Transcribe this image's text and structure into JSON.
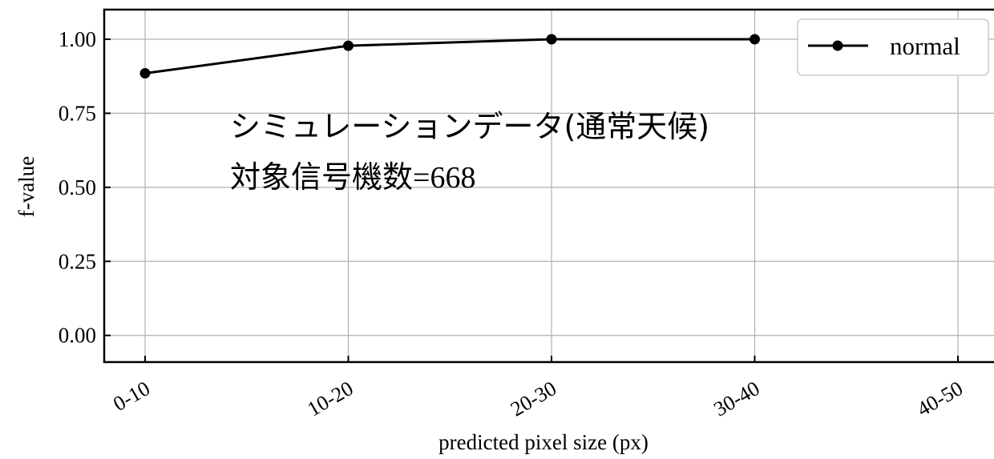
{
  "chart_data": {
    "type": "line",
    "categories": [
      "0-10",
      "10-20",
      "20-30",
      "30-40",
      "40-50"
    ],
    "series": [
      {
        "name": "normal",
        "values": [
          0.885,
          0.978,
          1.0,
          1.0,
          null
        ],
        "color": "#000000",
        "marker": "circle"
      }
    ],
    "xlabel": "predicted pixel size (px)",
    "ylabel": "f-value",
    "ylim": [
      -0.09,
      1.1
    ],
    "yticks": [
      0.0,
      0.25,
      0.5,
      0.75,
      1.0
    ],
    "ytick_labels": [
      "0.00",
      "0.25",
      "0.50",
      "0.75",
      "1.00"
    ],
    "grid": true,
    "legend_position": "top-right",
    "annotation": {
      "line1": "シミュレーションデータ(通常天候)",
      "line2_prefix": "対象信号機数",
      "line2_suffix": "=668"
    }
  }
}
